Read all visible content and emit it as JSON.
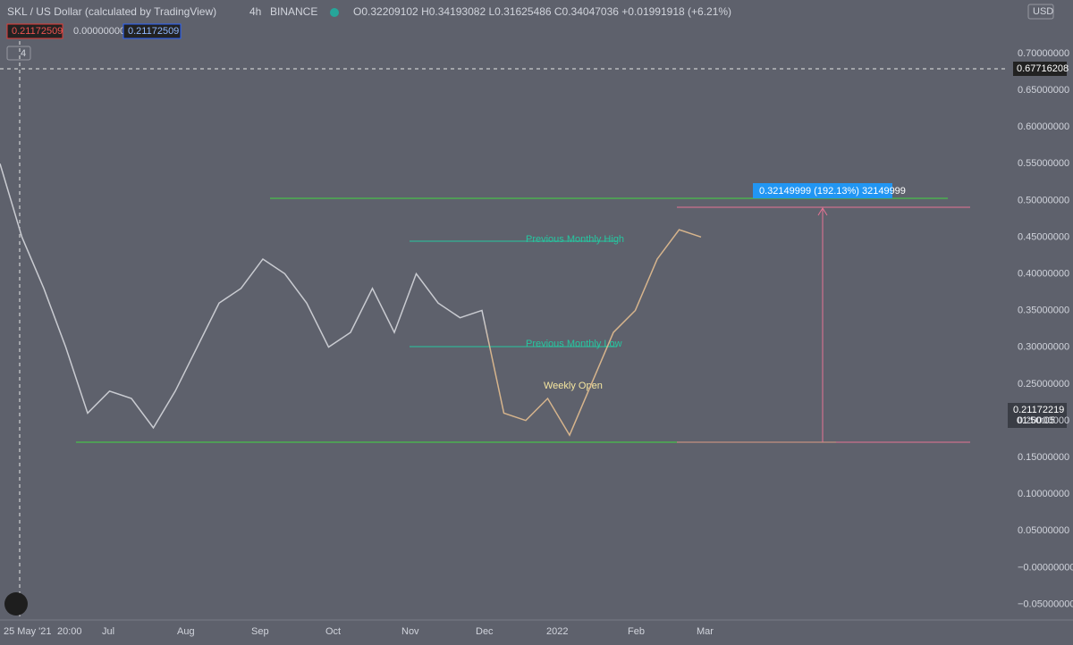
{
  "header": {
    "symbol": "SKL / US Dollar (calculated by TradingView)",
    "interval": "4h",
    "exchange": "BINANCE",
    "ohlc": "O0.32209102 H0.34193082 L0.31625486 C0.34047036 +0.01991918 (+6.21%)",
    "currency": "USD"
  },
  "indicator_badges": [
    "0.21172509",
    "0.00000000",
    "0.21172509"
  ],
  "collapsed_count": "4",
  "price_axis": {
    "labels": [
      "0.70000000",
      "0.65000000",
      "0.60000000",
      "0.55000000",
      "0.50000000",
      "0.45000000",
      "0.40000000",
      "0.35000000",
      "0.30000000",
      "0.25000000",
      "0.20000000",
      "0.15000000",
      "0.10000000",
      "0.05000000",
      "−0.00000000",
      "−0.05000000"
    ]
  },
  "crosshair_price": "0.67716208",
  "last_price": {
    "price": "0.21172219",
    "countdown": "01:50:05"
  },
  "time_axis": {
    "labels": [
      "25 May '21",
      "20:00",
      "Jul",
      "Aug",
      "Sep",
      "Oct",
      "Nov",
      "Dec",
      "2022",
      "Feb",
      "Mar"
    ]
  },
  "annotations": {
    "monthly_high": "Previous Monthly High",
    "monthly_low": "Previous Monthly Low",
    "weekly_open": "Weekly Open",
    "measure": "0.32149999 (192.13%) 32149999"
  },
  "price_trace": {
    "ylim": [
      -0.05,
      0.7
    ],
    "values": [
      0.55,
      0.45,
      0.38,
      0.3,
      0.21,
      0.24,
      0.23,
      0.19,
      0.24,
      0.3,
      0.36,
      0.38,
      0.42,
      0.4,
      0.36,
      0.3,
      0.32,
      0.38,
      0.32,
      0.4,
      0.36,
      0.34,
      0.35,
      0.21,
      0.2,
      0.23,
      0.18,
      0.25,
      0.32,
      0.35,
      0.42,
      0.46,
      0.45
    ]
  }
}
